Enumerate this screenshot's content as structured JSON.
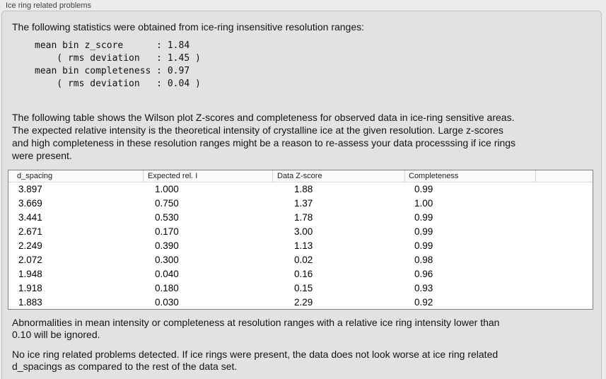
{
  "panel": {
    "title": "Ice ring related problems",
    "intro": "The following statistics were obtained from ice-ring insensitive resolution ranges:",
    "stats_block": "mean bin z_score      : 1.84\n    ( rms deviation   : 1.45 )\nmean bin completeness : 0.97\n    ( rms deviation   : 0.04 )",
    "table_description": "The following table shows the Wilson plot Z-scores and completeness for observed data in ice-ring sensitive areas.\nThe expected relative intensity is the theoretical intensity of crystalline ice at the given resolution. Large z-scores\nand high completeness in these resolution ranges might be a reason to re-assess your data processsing if ice rings\nwere present.",
    "ignore_note": "Abnormalities in mean intensity or completeness at resolution ranges with a relative ice ring intensity lower than\n0.10 will be ignored.",
    "conclusion": "No ice ring related problems detected. If ice rings were present, the data does not look worse at ice ring related\nd_spacings as compared to the rest of the data set."
  },
  "table": {
    "columns": [
      "d_spacing",
      "Expected rel. I",
      "Data Z-score",
      "Completeness",
      ""
    ],
    "rows": [
      [
        "3.897",
        "1.000",
        "1.88",
        "0.99"
      ],
      [
        "3.669",
        "0.750",
        "1.37",
        "1.00"
      ],
      [
        "3.441",
        "0.530",
        "1.78",
        "0.99"
      ],
      [
        "2.671",
        "0.170",
        "3.00",
        "0.99"
      ],
      [
        "2.249",
        "0.390",
        "1.13",
        "0.99"
      ],
      [
        "2.072",
        "0.300",
        "0.02",
        "0.98"
      ],
      [
        "1.948",
        "0.040",
        "0.16",
        "0.96"
      ],
      [
        "1.918",
        "0.180",
        "0.15",
        "0.93"
      ],
      [
        "1.883",
        "0.030",
        "2.29",
        "0.92"
      ]
    ]
  },
  "colors": {
    "outer_background": "#ececec",
    "panel_background": "#e2e2e2",
    "panel_border": "#c0c0c0",
    "table_border": "#808080",
    "table_header_background": "#fafafa",
    "text": "#141414"
  }
}
